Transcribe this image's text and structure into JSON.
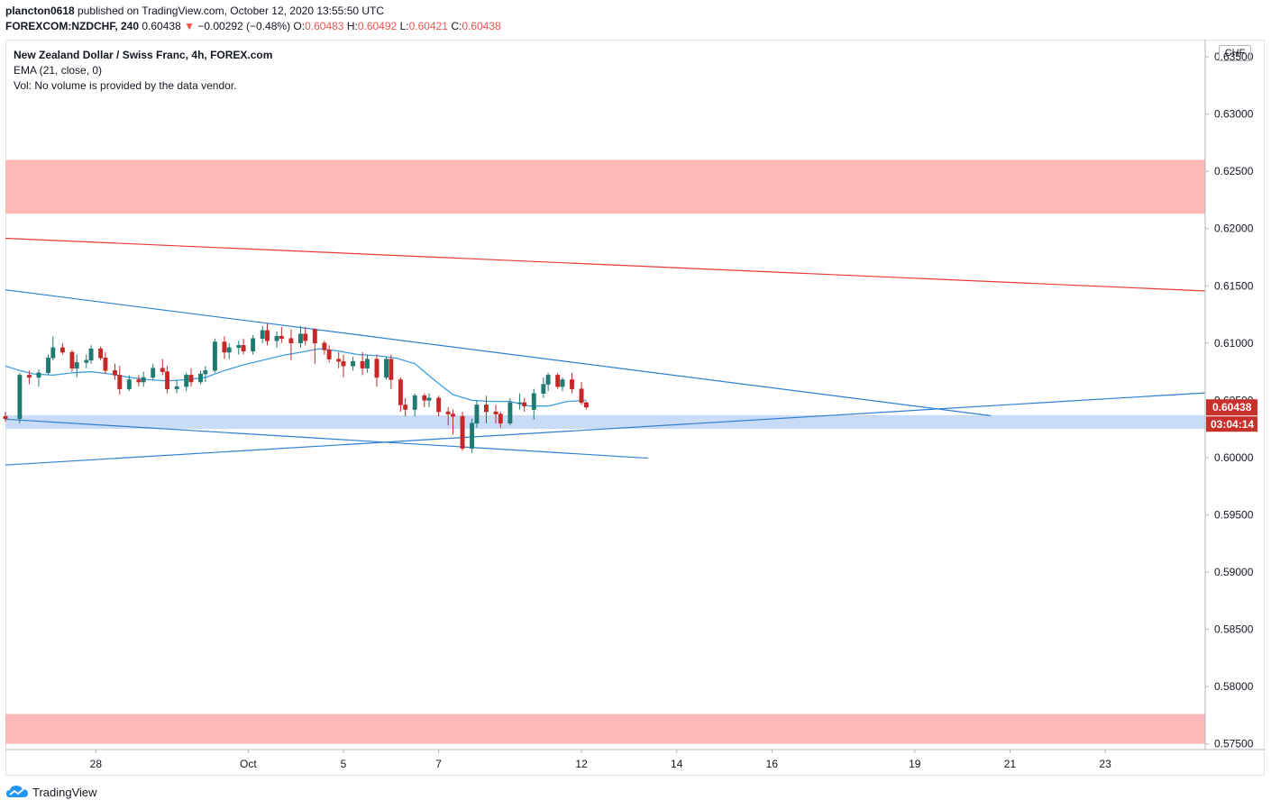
{
  "header": {
    "author": "plancton0618",
    "published_text": "published on TradingView.com, October 12, 2020 13:55:50 UTC",
    "symbol": "FOREXCOM:NZDCHF, 240",
    "price": "0.60438",
    "arrow": "▼",
    "change": "−0.00292 (−0.48%)",
    "o_label": "O:",
    "o_value": "0.60483",
    "h_label": "H:",
    "h_value": "0.60492",
    "l_label": "L:",
    "l_value": "0.60421",
    "c_label": "C:",
    "c_value": "0.60438"
  },
  "legend": {
    "title": "New Zealand Dollar / Swiss Franc, 4h, FOREX.com",
    "ema": "EMA (21, close, 0)",
    "vol": "Vol: No volume is provided by the data vendor."
  },
  "currency_label": "CHF",
  "footer": {
    "brand": "TradingView"
  },
  "colors": {
    "up": "#26a69a",
    "down": "#ef5350",
    "candle_up": "#1f7a72",
    "candle_down": "#c62828",
    "resistance_zone": "#ffb8b8",
    "support_zone": "#c9dcf7",
    "trend_blue": "#2f7fd1",
    "trend_red": "#e53935",
    "ema": "#3d9ee0",
    "price_label_bg": "#c9302c"
  },
  "chart_data": {
    "type": "candlestick",
    "title": "New Zealand Dollar / Swiss Franc, 4h, FOREX.com",
    "y_axis": {
      "ticks": [
        "0.63500",
        "0.63000",
        "0.62500",
        "0.62000",
        "0.61500",
        "0.61000",
        "0.60500",
        "0.60000",
        "0.59500",
        "0.59000",
        "0.58500",
        "0.58000",
        "0.57500"
      ],
      "ylim": [
        0.5745,
        0.6365
      ]
    },
    "x_axis": {
      "ticks": [
        "28",
        "Oct",
        "5",
        "7",
        "12",
        "14",
        "16",
        "19",
        "21",
        "23"
      ],
      "tick_bars": [
        19,
        51,
        71,
        91,
        121,
        141,
        161,
        191,
        211,
        231
      ],
      "xlim_bars": [
        0,
        252
      ]
    },
    "last_price_label": "0.60438",
    "countdown_label": "03:04:14",
    "zones": [
      {
        "type": "resistance",
        "y_top": 0.626,
        "y_bottom": 0.6213
      },
      {
        "type": "support",
        "y_top": 0.6037,
        "y_bottom": 0.6025
      },
      {
        "type": "demand",
        "y_top": 0.5776,
        "y_bottom": 0.575
      }
    ],
    "trendlines": [
      {
        "color": "red",
        "x1": 0,
        "y1": 0.61915,
        "x2": 252,
        "y2": 0.61455
      },
      {
        "color": "blue",
        "x1": 0,
        "y1": 0.61465,
        "x2": 207,
        "y2": 0.60365
      },
      {
        "color": "blue",
        "x1": 0,
        "y1": 0.60335,
        "x2": 135,
        "y2": 0.59995
      },
      {
        "color": "blue",
        "x1": 0,
        "y1": 0.59935,
        "x2": 252,
        "y2": 0.60565
      }
    ],
    "ema_21": [
      [
        0,
        0.608
      ],
      [
        3,
        0.6076
      ],
      [
        6,
        0.6073
      ],
      [
        10,
        0.6072
      ],
      [
        14,
        0.6074
      ],
      [
        18,
        0.6075
      ],
      [
        22,
        0.6073
      ],
      [
        26,
        0.607
      ],
      [
        30,
        0.6068
      ],
      [
        34,
        0.6067
      ],
      [
        38,
        0.6068
      ],
      [
        42,
        0.607
      ],
      [
        46,
        0.6076
      ],
      [
        50,
        0.6081
      ],
      [
        54,
        0.6085
      ],
      [
        58,
        0.6089
      ],
      [
        62,
        0.6092
      ],
      [
        66,
        0.6095
      ],
      [
        70,
        0.6093
      ],
      [
        74,
        0.609
      ],
      [
        78,
        0.6089
      ],
      [
        82,
        0.6087
      ],
      [
        86,
        0.6082
      ],
      [
        90,
        0.6068
      ],
      [
        94,
        0.6055
      ],
      [
        98,
        0.605
      ],
      [
        102,
        0.6049
      ],
      [
        106,
        0.6049
      ],
      [
        110,
        0.6045
      ],
      [
        114,
        0.6045
      ],
      [
        118,
        0.6049
      ],
      [
        122,
        0.605
      ]
    ],
    "candles": [
      [
        0,
        0.6036,
        0.604,
        0.6031,
        0.6034
      ],
      [
        3,
        0.6034,
        0.6074,
        0.603,
        0.6072
      ],
      [
        5,
        0.6072,
        0.6076,
        0.6064,
        0.607
      ],
      [
        7,
        0.607,
        0.6077,
        0.6062,
        0.6074
      ],
      [
        9,
        0.6074,
        0.609,
        0.6072,
        0.6087
      ],
      [
        10,
        0.6087,
        0.6106,
        0.6085,
        0.6096
      ],
      [
        12,
        0.6096,
        0.61,
        0.609,
        0.6092
      ],
      [
        14,
        0.6092,
        0.6094,
        0.6075,
        0.6078
      ],
      [
        15,
        0.6078,
        0.609,
        0.607,
        0.6083
      ],
      [
        17,
        0.6083,
        0.609,
        0.6078,
        0.6085
      ],
      [
        18,
        0.6085,
        0.6098,
        0.6082,
        0.6095
      ],
      [
        20,
        0.6095,
        0.6097,
        0.6085,
        0.6087
      ],
      [
        21,
        0.6087,
        0.6092,
        0.6073,
        0.6076
      ],
      [
        23,
        0.6076,
        0.6082,
        0.6068,
        0.6072
      ],
      [
        24,
        0.6072,
        0.608,
        0.6055,
        0.606
      ],
      [
        26,
        0.606,
        0.6072,
        0.6058,
        0.6068
      ],
      [
        28,
        0.6068,
        0.6072,
        0.6062,
        0.6066
      ],
      [
        29,
        0.6066,
        0.6075,
        0.6062,
        0.607
      ],
      [
        31,
        0.607,
        0.6082,
        0.6068,
        0.6078
      ],
      [
        33,
        0.6078,
        0.6086,
        0.6072,
        0.6075
      ],
      [
        34,
        0.6075,
        0.608,
        0.6056,
        0.606
      ],
      [
        36,
        0.606,
        0.6068,
        0.6056,
        0.6062
      ],
      [
        38,
        0.6062,
        0.6074,
        0.6058,
        0.6072
      ],
      [
        39,
        0.6072,
        0.6078,
        0.6062,
        0.6066
      ],
      [
        41,
        0.6066,
        0.6076,
        0.6064,
        0.6073
      ],
      [
        42,
        0.6073,
        0.608,
        0.6066,
        0.6076
      ],
      [
        44,
        0.6076,
        0.6104,
        0.6074,
        0.6101
      ],
      [
        46,
        0.6101,
        0.6106,
        0.6086,
        0.6092
      ],
      [
        47,
        0.6092,
        0.61,
        0.6086,
        0.6096
      ],
      [
        49,
        0.6096,
        0.6102,
        0.609,
        0.6098
      ],
      [
        50,
        0.6098,
        0.6104,
        0.609,
        0.6093
      ],
      [
        52,
        0.6093,
        0.6107,
        0.609,
        0.6104
      ],
      [
        54,
        0.6104,
        0.6115,
        0.61,
        0.6111
      ],
      [
        55,
        0.6111,
        0.6117,
        0.6098,
        0.6102
      ],
      [
        57,
        0.6102,
        0.611,
        0.6096,
        0.6106
      ],
      [
        58,
        0.6106,
        0.6114,
        0.61,
        0.6104
      ],
      [
        60,
        0.6104,
        0.6112,
        0.6085,
        0.61
      ],
      [
        62,
        0.61,
        0.6115,
        0.6096,
        0.6108
      ],
      [
        63,
        0.6108,
        0.6114,
        0.6098,
        0.6102
      ],
      [
        65,
        0.6112,
        0.6113,
        0.6082,
        0.61
      ],
      [
        67,
        0.61,
        0.6102,
        0.609,
        0.6094
      ],
      [
        68,
        0.6094,
        0.6098,
        0.6083,
        0.6086
      ],
      [
        70,
        0.6086,
        0.6092,
        0.6078,
        0.6084
      ],
      [
        71,
        0.6084,
        0.609,
        0.607,
        0.608
      ],
      [
        73,
        0.608,
        0.6088,
        0.6076,
        0.6084
      ],
      [
        75,
        0.6084,
        0.6092,
        0.6072,
        0.6078
      ],
      [
        76,
        0.6078,
        0.609,
        0.6074,
        0.6086
      ],
      [
        78,
        0.6086,
        0.609,
        0.6062,
        0.607
      ],
      [
        80,
        0.607,
        0.6088,
        0.6068,
        0.6086
      ],
      [
        81,
        0.6086,
        0.609,
        0.606,
        0.6068
      ],
      [
        83,
        0.6068,
        0.607,
        0.604,
        0.6046
      ],
      [
        84,
        0.6046,
        0.6052,
        0.6036,
        0.6042
      ],
      [
        86,
        0.6042,
        0.6056,
        0.6036,
        0.6054
      ],
      [
        88,
        0.6054,
        0.6056,
        0.6044,
        0.605
      ],
      [
        89,
        0.605,
        0.6056,
        0.6044,
        0.6052
      ],
      [
        91,
        0.6052,
        0.6054,
        0.6036,
        0.604
      ],
      [
        93,
        0.604,
        0.6044,
        0.6028,
        0.6038
      ],
      [
        94,
        0.6038,
        0.6042,
        0.602,
        0.6036
      ],
      [
        96,
        0.6036,
        0.604,
        0.6006,
        0.6008
      ],
      [
        98,
        0.6008,
        0.6034,
        0.6004,
        0.603
      ],
      [
        99,
        0.603,
        0.605,
        0.6026,
        0.6046
      ],
      [
        101,
        0.6046,
        0.6054,
        0.603,
        0.604
      ],
      [
        103,
        0.604,
        0.6046,
        0.603,
        0.6038
      ],
      [
        104,
        0.6038,
        0.604,
        0.6026,
        0.603
      ],
      [
        106,
        0.603,
        0.6052,
        0.6028,
        0.6048
      ],
      [
        108,
        0.6048,
        0.6056,
        0.6042,
        0.6048
      ],
      [
        109,
        0.6048,
        0.6052,
        0.604,
        0.6045
      ],
      [
        111,
        0.6042,
        0.606,
        0.6033,
        0.6056
      ],
      [
        113,
        0.6056,
        0.607,
        0.6052,
        0.6064
      ],
      [
        114,
        0.6064,
        0.6074,
        0.6058,
        0.6072
      ],
      [
        116,
        0.6072,
        0.6074,
        0.606,
        0.6062
      ],
      [
        117,
        0.6062,
        0.607,
        0.6058,
        0.6068
      ],
      [
        119,
        0.6068,
        0.6074,
        0.6056,
        0.606
      ],
      [
        121,
        0.606,
        0.6066,
        0.6046,
        0.6048
      ],
      [
        122,
        0.6048,
        0.6049,
        0.6042,
        0.6044
      ]
    ]
  }
}
